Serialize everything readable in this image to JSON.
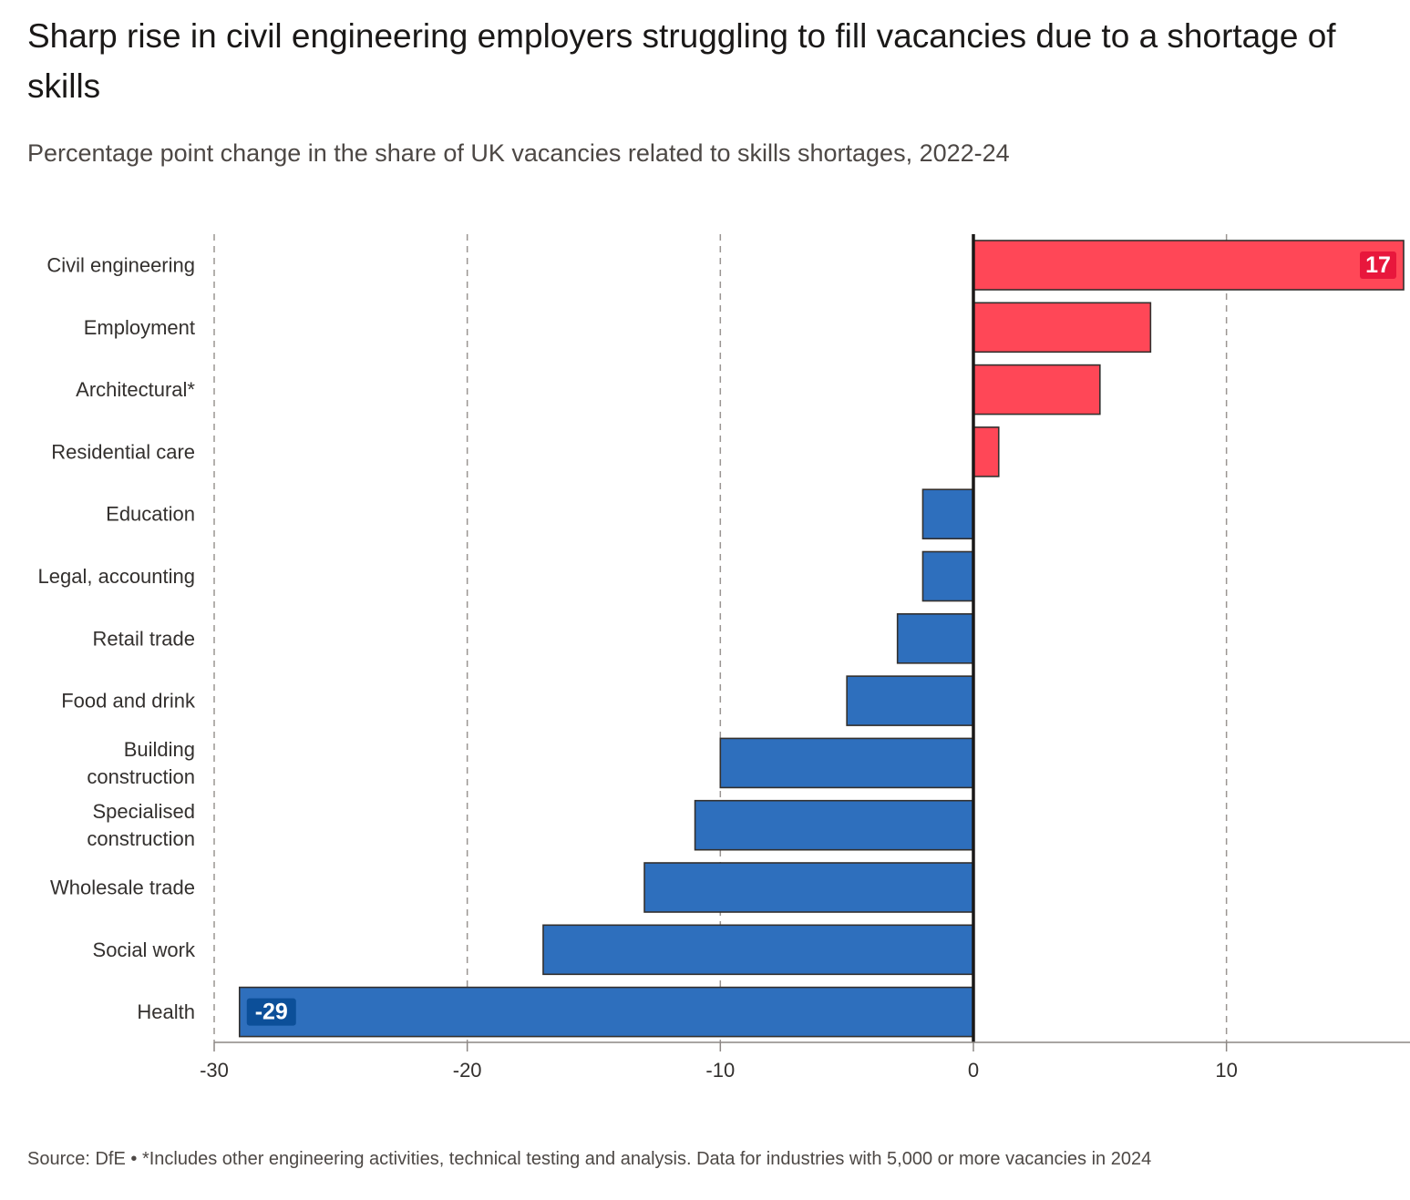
{
  "chart_data": {
    "type": "bar",
    "orientation": "horizontal",
    "title": "Sharp rise in civil engineering employers struggling to fill vacancies due to a shortage of skills",
    "subtitle": "Percentage point change in the share of UK vacancies related to skills shortages, 2022-24",
    "xlabel": "",
    "ylabel": "",
    "xlim": [
      -30,
      17
    ],
    "xticks": [
      -30,
      -20,
      -10,
      0,
      10
    ],
    "grid": "vertical-dashed",
    "legend": "none",
    "categories": [
      [
        "Civil engineering"
      ],
      [
        "Employment"
      ],
      [
        "Architectural*"
      ],
      [
        "Residential care"
      ],
      [
        "Education"
      ],
      [
        "Legal, accounting"
      ],
      [
        "Retail trade"
      ],
      [
        "Food and drink"
      ],
      [
        "Building",
        "construction"
      ],
      [
        "Specialised",
        "construction"
      ],
      [
        "Wholesale trade"
      ],
      [
        "Social work"
      ],
      [
        "Health"
      ]
    ],
    "values": [
      17,
      7,
      5,
      1,
      -2,
      -2,
      -3,
      -5,
      -10,
      -11,
      -13,
      -17,
      -29
    ],
    "data_labels": [
      {
        "index": 0,
        "text": "17"
      },
      {
        "index": 12,
        "text": "-29"
      }
    ],
    "colors": {
      "positive": "#ff4757",
      "positive_label_bg": "#e8173c",
      "negative": "#2e6fbd",
      "negative_label_bg": "#0c4f99",
      "bar_stroke": "#33302e",
      "zero_line": "#1a1817",
      "grid": "#9a9592",
      "axis": "#8c8784"
    }
  },
  "source": "Source: DfE • *Includes other engineering activities, technical testing and analysis. Data for industries with 5,000 or more vacancies in 2024"
}
